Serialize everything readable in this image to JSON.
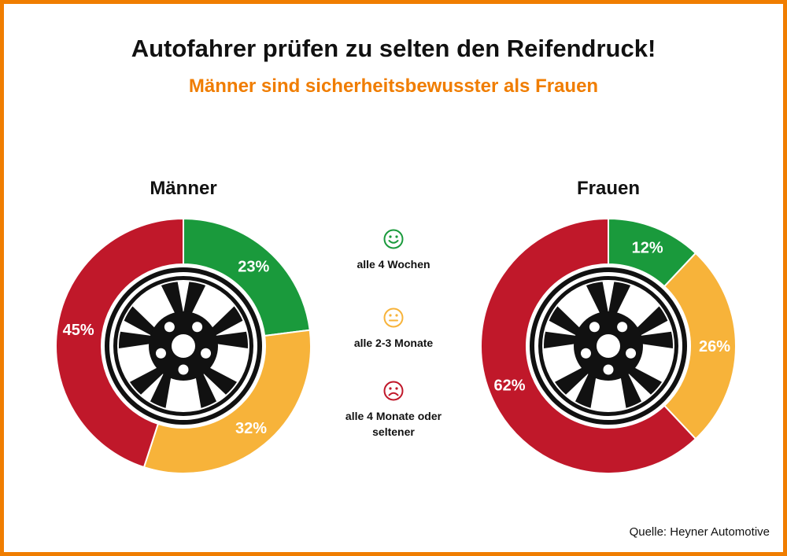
{
  "title": "Autofahrer prüfen zu selten den Reifendruck!",
  "subtitle": "Männer sind sicherheitsbewusster als Frauen",
  "source": "Quelle: Heyner Automotive",
  "colors": {
    "frame": "#f07d00",
    "subtitle": "#f07d00",
    "green": "#1a9a3c",
    "orange": "#f7b33a",
    "red": "#c0182a"
  },
  "legend": [
    {
      "icon": "smiley-happy-icon",
      "label": "alle 4 Wochen",
      "color": "#1a9a3c"
    },
    {
      "icon": "smiley-neutral-icon",
      "label": "alle 2-3 Monate",
      "color": "#f7b33a"
    },
    {
      "icon": "smiley-sad-icon",
      "label": "alle 4 Monate oder seltener",
      "color": "#c0182a"
    }
  ],
  "chart_data": [
    {
      "type": "pie",
      "title": "Männer",
      "categories": [
        "alle 4 Wochen",
        "alle 2-3 Monate",
        "alle 4 Monate oder seltener"
      ],
      "values": [
        23,
        32,
        45
      ],
      "labels": [
        "23%",
        "32%",
        "45%"
      ],
      "colors": [
        "#1a9a3c",
        "#f7b33a",
        "#c0182a"
      ],
      "unit": "%"
    },
    {
      "type": "pie",
      "title": "Frauen",
      "categories": [
        "alle 4 Wochen",
        "alle 2-3 Monate",
        "alle 4 Monate oder seltener"
      ],
      "values": [
        12,
        26,
        62
      ],
      "labels": [
        "12%",
        "26%",
        "62%"
      ],
      "colors": [
        "#1a9a3c",
        "#f7b33a",
        "#c0182a"
      ],
      "unit": "%"
    }
  ]
}
